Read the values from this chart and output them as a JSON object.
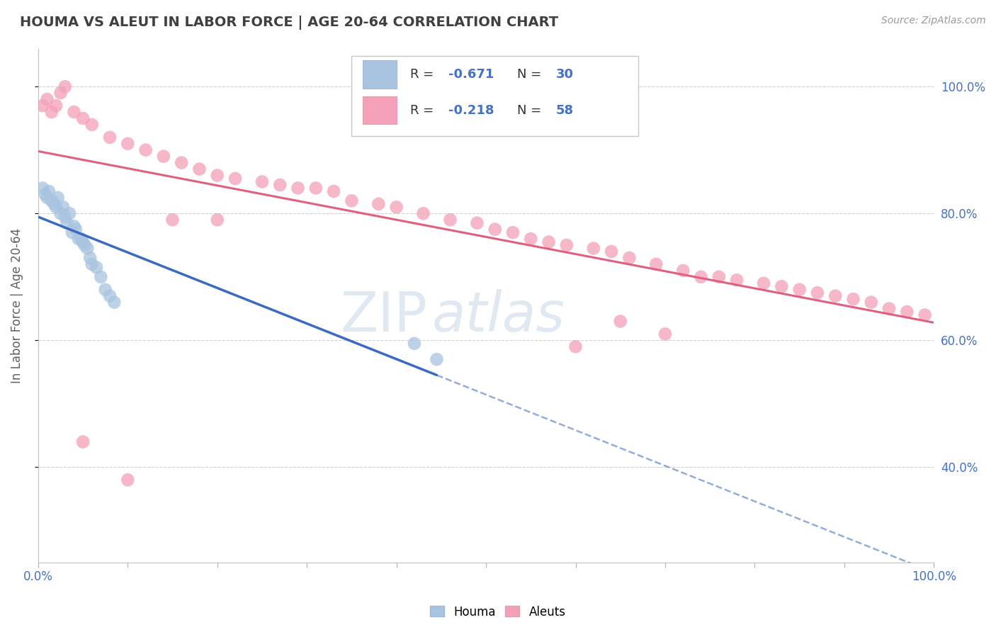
{
  "title": "HOUMA VS ALEUT IN LABOR FORCE | AGE 20-64 CORRELATION CHART",
  "source_text": "Source: ZipAtlas.com",
  "ylabel": "In Labor Force | Age 20-64",
  "xlim": [
    0.0,
    1.0
  ],
  "ylim": [
    0.25,
    1.06
  ],
  "xticks": [
    0.0,
    0.1,
    0.2,
    0.3,
    0.4,
    0.5,
    0.6,
    0.7,
    0.8,
    0.9,
    1.0
  ],
  "xticklabels_shown": {
    "0.0": "0.0%",
    "1.0": "100.0%"
  },
  "yticks": [
    0.4,
    0.6,
    0.8,
    1.0
  ],
  "yticklabels": [
    "40.0%",
    "60.0%",
    "80.0%",
    "100.0%"
  ],
  "houma_color": "#a8c4e0",
  "aleut_color": "#f4a0b8",
  "houma_line_color": "#3a6bbf",
  "aleut_line_color": "#e06080",
  "houma_R": -0.671,
  "houma_N": 30,
  "aleut_R": -0.218,
  "aleut_N": 58,
  "legend_label_houma": "Houma",
  "legend_label_aleut": "Aleuts",
  "background_color": "#ffffff",
  "grid_color": "#d0d0d0",
  "title_color": "#404040",
  "axis_label_color": "#606060",
  "tick_color": "#808080",
  "right_tick_color": "#4472c4",
  "houma_x": [
    0.005,
    0.008,
    0.01,
    0.012,
    0.015,
    0.018,
    0.02,
    0.022,
    0.025,
    0.028,
    0.03,
    0.032,
    0.035,
    0.038,
    0.04,
    0.042,
    0.045,
    0.048,
    0.05,
    0.052,
    0.055,
    0.058,
    0.06,
    0.065,
    0.07,
    0.075,
    0.08,
    0.085,
    0.42,
    0.445
  ],
  "houma_y": [
    0.84,
    0.83,
    0.825,
    0.835,
    0.82,
    0.815,
    0.81,
    0.825,
    0.8,
    0.81,
    0.795,
    0.785,
    0.8,
    0.77,
    0.78,
    0.775,
    0.76,
    0.76,
    0.755,
    0.75,
    0.745,
    0.73,
    0.72,
    0.715,
    0.7,
    0.68,
    0.67,
    0.66,
    0.595,
    0.57
  ],
  "aleut_x": [
    0.005,
    0.01,
    0.015,
    0.02,
    0.025,
    0.03,
    0.04,
    0.05,
    0.06,
    0.08,
    0.1,
    0.12,
    0.14,
    0.16,
    0.18,
    0.2,
    0.22,
    0.25,
    0.27,
    0.29,
    0.31,
    0.33,
    0.35,
    0.38,
    0.4,
    0.43,
    0.46,
    0.49,
    0.51,
    0.53,
    0.55,
    0.57,
    0.59,
    0.62,
    0.64,
    0.66,
    0.69,
    0.72,
    0.74,
    0.76,
    0.78,
    0.81,
    0.83,
    0.85,
    0.87,
    0.89,
    0.91,
    0.93,
    0.95,
    0.97,
    0.99,
    0.05,
    0.1,
    0.15,
    0.2,
    0.6,
    0.65,
    0.7
  ],
  "aleut_y": [
    0.97,
    0.98,
    0.96,
    0.97,
    0.99,
    1.0,
    0.96,
    0.95,
    0.94,
    0.92,
    0.91,
    0.9,
    0.89,
    0.88,
    0.87,
    0.86,
    0.855,
    0.85,
    0.845,
    0.84,
    0.84,
    0.835,
    0.82,
    0.815,
    0.81,
    0.8,
    0.79,
    0.785,
    0.775,
    0.77,
    0.76,
    0.755,
    0.75,
    0.745,
    0.74,
    0.73,
    0.72,
    0.71,
    0.7,
    0.7,
    0.695,
    0.69,
    0.685,
    0.68,
    0.675,
    0.67,
    0.665,
    0.66,
    0.65,
    0.645,
    0.64,
    0.44,
    0.38,
    0.79,
    0.79,
    0.59,
    0.63,
    0.61
  ],
  "houma_line_x0": 0.0,
  "houma_line_y0": 0.82,
  "houma_line_x1": 0.445,
  "houma_line_y1": 0.56,
  "aleut_line_x0": 0.0,
  "aleut_line_y0": 0.81,
  "aleut_line_x1": 1.0,
  "aleut_line_y1": 0.65
}
